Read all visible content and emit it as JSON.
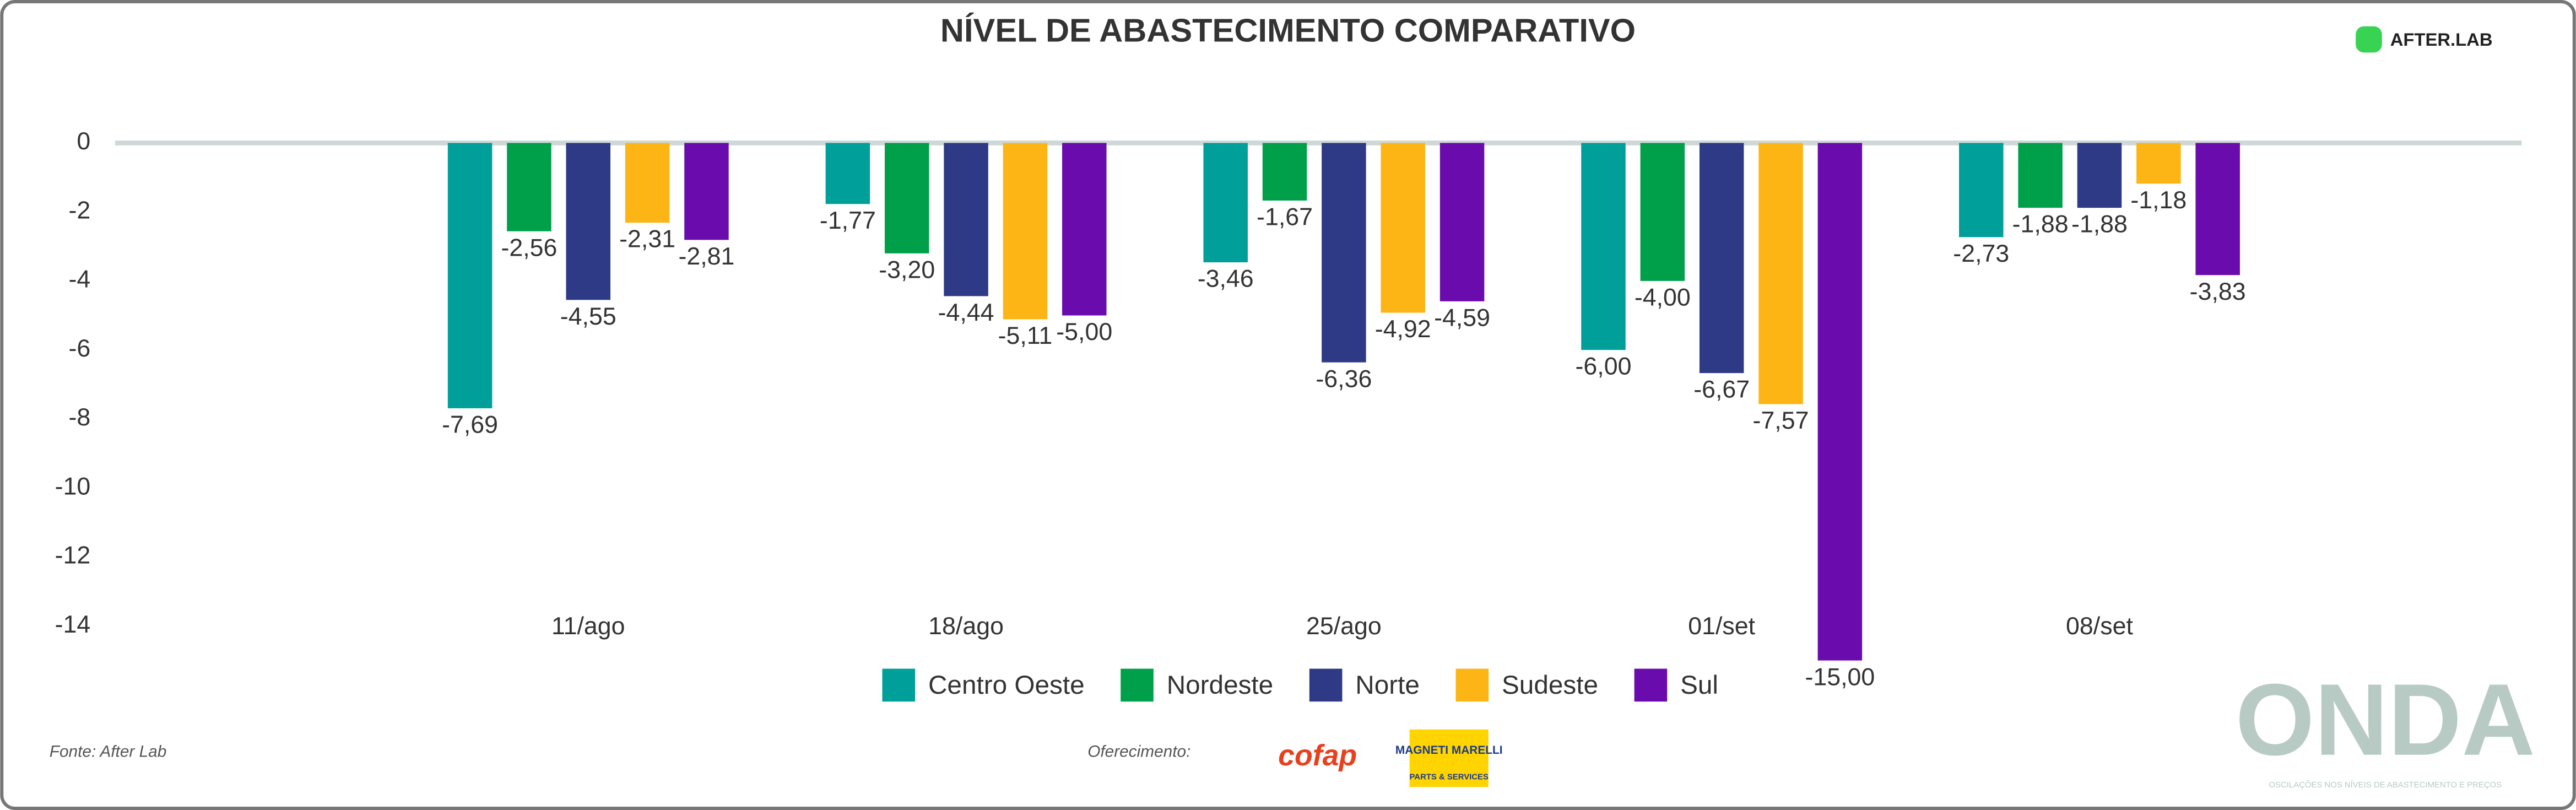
{
  "chart_data": {
    "type": "bar",
    "title": "NÍVEL DE ABASTECIMENTO COMPARATIVO",
    "categories": [
      "11/ago",
      "18/ago",
      "25/ago",
      "01/set",
      "08/set"
    ],
    "series": [
      {
        "name": "Centro Oeste",
        "color": "#009f9a",
        "values": [
          -7.69,
          -1.77,
          -3.46,
          -6.0,
          -2.73
        ],
        "value_labels": [
          "-7,69",
          "-1,77",
          "-3,46",
          "-6,00",
          "-2,73"
        ]
      },
      {
        "name": "Nordeste",
        "color": "#00a04a",
        "values": [
          -2.56,
          -3.2,
          -1.67,
          -4.0,
          -1.88
        ],
        "value_labels": [
          "-2,56",
          "-3,20",
          "-1,67",
          "-4,00",
          "-1,88"
        ]
      },
      {
        "name": "Norte",
        "color": "#2f3a86",
        "values": [
          -4.55,
          -4.44,
          -6.36,
          -6.67,
          -1.88
        ],
        "value_labels": [
          "-4,55",
          "-4,44",
          "-6,36",
          "-6,67",
          "-1,88"
        ]
      },
      {
        "name": "Sudeste",
        "color": "#fdb515",
        "values": [
          -2.31,
          -5.11,
          -4.92,
          -7.57,
          -1.18
        ],
        "value_labels": [
          "-2,31",
          "-5,11",
          "-4,92",
          "-7,57",
          "-1,18"
        ]
      },
      {
        "name": "Sul",
        "color": "#6a0cad",
        "values": [
          -2.81,
          -5.0,
          -4.59,
          -15.0,
          -3.83
        ],
        "value_labels": [
          "-2,81",
          "-5,00",
          "-4,59",
          "-15,00",
          "-3,83"
        ]
      }
    ],
    "ylim": [
      -14,
      2
    ],
    "yticks": [
      0,
      -2,
      -4,
      -6,
      -8,
      -10,
      -12,
      -14
    ],
    "legend": "bottom",
    "source": "Fonte: After Lab",
    "sponsor_label": "Oferecimento:",
    "logo": "AFTER.LAB",
    "sponsors": [
      "cofap",
      "MAGNETI MARELLI",
      "PARTS & SERVICES"
    ],
    "brand": "ONDA",
    "brand_tagline": "OSCILAÇÕES NOS NÍVEIS DE ABASTECIMENTO E PREÇOS"
  }
}
